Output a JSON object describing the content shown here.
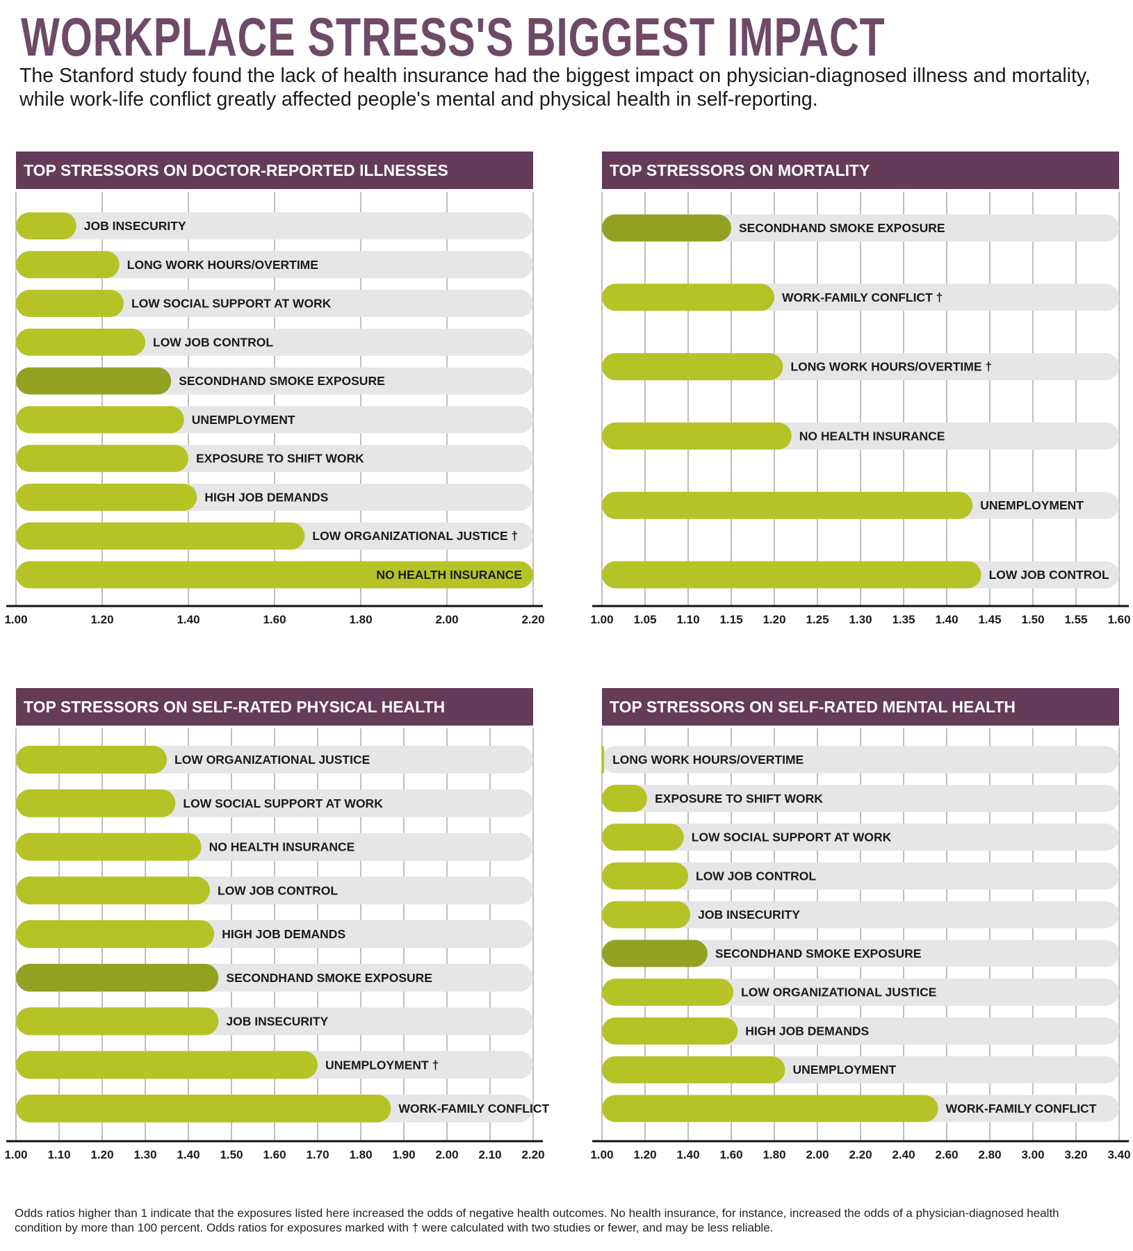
{
  "title": "WORKPLACE STRESS'S BIGGEST IMPACT",
  "subtitle": "The Stanford study found the lack of  health insurance had the biggest impact on physician-diagnosed illness and mortality, while work-life conflict greatly affected people's mental and physical health in self-reporting.",
  "footnote": "Odds ratios higher than 1 indicate that the exposures listed here increased the odds of  negative health outcomes. No health insurance, for instance, increased the odds of a physician-diagnosed health condition by more than 100 percent. Odds ratios for exposures marked with † were calculated with two studies or fewer, and may be less reliable.",
  "colors": {
    "title": "#6e4a67",
    "header": "#643b58",
    "bar": "#b5c327",
    "highlight_bar": "#93a122",
    "track": "#e6e6e8"
  },
  "chart_data": [
    {
      "type": "bar",
      "orientation": "horizontal",
      "title": "TOP STRESSORS ON DOCTOR-REPORTED ILLNESSES",
      "xlim": [
        1.0,
        2.2
      ],
      "ticks": [
        "1.00",
        "1.20",
        "1.40",
        "1.60",
        "1.80",
        "2.00",
        "2.20"
      ],
      "grid": true,
      "categories": [
        "JOB INSECURITY",
        "LONG WORK HOURS/OVERTIME",
        "LOW SOCIAL SUPPORT AT WORK",
        "LOW JOB CONTROL",
        "SECONDHAND SMOKE EXPOSURE",
        "UNEMPLOYMENT",
        "EXPOSURE TO SHIFT WORK",
        "HIGH JOB DEMANDS",
        "LOW ORGANIZATIONAL JUSTICE †",
        "NO HEALTH INSURANCE"
      ],
      "values": [
        1.14,
        1.24,
        1.25,
        1.3,
        1.36,
        1.39,
        1.4,
        1.42,
        1.67,
        2.2
      ],
      "highlight": [
        "SECONDHAND SMOKE EXPOSURE"
      ]
    },
    {
      "type": "bar",
      "orientation": "horizontal",
      "title": "TOP STRESSORS ON MORTALITY",
      "xlim": [
        1.0,
        1.6
      ],
      "ticks": [
        "1.00",
        "1.05",
        "1.10",
        "1.15",
        "1.20",
        "1.25",
        "1.30",
        "1.35",
        "1.40",
        "1.45",
        "1.50",
        "1.55",
        "1.60"
      ],
      "grid": true,
      "categories": [
        "SECONDHAND SMOKE EXPOSURE",
        "WORK-FAMILY CONFLICT †",
        "LONG WORK HOURS/OVERTIME †",
        "NO HEALTH INSURANCE",
        "UNEMPLOYMENT",
        "LOW JOB CONTROL"
      ],
      "values": [
        1.15,
        1.2,
        1.21,
        1.22,
        1.43,
        1.44
      ],
      "highlight": [
        "SECONDHAND SMOKE EXPOSURE"
      ]
    },
    {
      "type": "bar",
      "orientation": "horizontal",
      "title": "TOP STRESSORS ON SELF-RATED PHYSICAL HEALTH",
      "xlim": [
        1.0,
        2.2
      ],
      "ticks": [
        "1.00",
        "1.10",
        "1.20",
        "1.30",
        "1.40",
        "1.50",
        "1.60",
        "1.70",
        "1.80",
        "1.90",
        "2.00",
        "2.10",
        "2.20"
      ],
      "grid": true,
      "categories": [
        "LOW ORGANIZATIONAL JUSTICE",
        "LOW SOCIAL SUPPORT AT WORK",
        "NO HEALTH INSURANCE",
        "LOW JOB CONTROL",
        "HIGH JOB DEMANDS",
        "SECONDHAND SMOKE EXPOSURE",
        "JOB INSECURITY",
        "UNEMPLOYMENT †",
        "WORK-FAMILY CONFLICT"
      ],
      "values": [
        1.35,
        1.37,
        1.43,
        1.45,
        1.46,
        1.47,
        1.47,
        1.7,
        1.87
      ],
      "highlight": [
        "SECONDHAND SMOKE EXPOSURE"
      ]
    },
    {
      "type": "bar",
      "orientation": "horizontal",
      "title": "TOP STRESSORS ON SELF-RATED MENTAL HEALTH",
      "xlim": [
        1.0,
        3.4
      ],
      "ticks": [
        "1.00",
        "1.20",
        "1.40",
        "1.60",
        "1.80",
        "2.00",
        "2.20",
        "2.40",
        "2.60",
        "2.80",
        "3.00",
        "3.20",
        "3.40"
      ],
      "grid": true,
      "categories": [
        "LONG WORK HOURS/OVERTIME",
        "EXPOSURE TO SHIFT WORK",
        "LOW SOCIAL SUPPORT AT WORK",
        "LOW JOB CONTROL",
        "JOB INSECURITY",
        "SECONDHAND SMOKE EXPOSURE",
        "LOW ORGANIZATIONAL JUSTICE",
        "HIGH JOB DEMANDS",
        "UNEMPLOYMENT",
        "WORK-FAMILY CONFLICT"
      ],
      "values": [
        1.01,
        1.21,
        1.38,
        1.4,
        1.41,
        1.49,
        1.61,
        1.63,
        1.85,
        2.56
      ],
      "highlight": [
        "SECONDHAND SMOKE EXPOSURE"
      ]
    }
  ]
}
